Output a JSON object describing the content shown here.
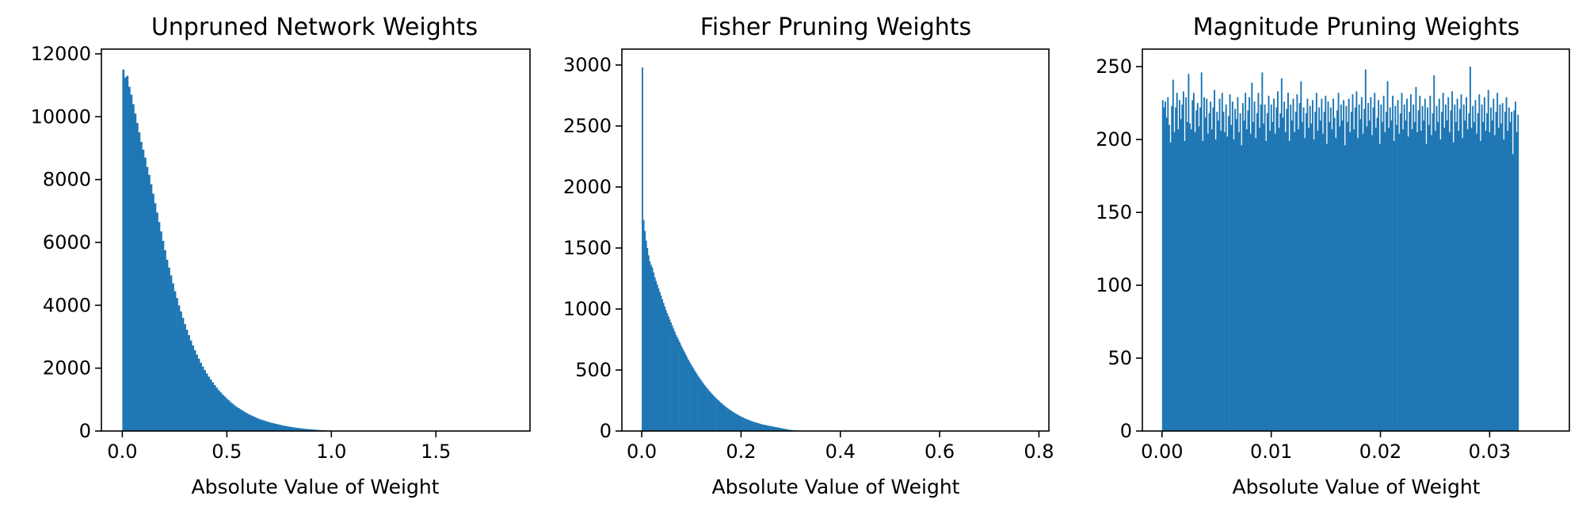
{
  "colors": {
    "bar": "#1f77b4",
    "axis": "#000000",
    "background": "#ffffff"
  },
  "chart_data": [
    {
      "type": "bar",
      "title": "Unpruned Network Weights",
      "xlabel": "Absolute Value of Weight",
      "ylabel": "",
      "xlim": [
        -0.1,
        1.95
      ],
      "ylim": [
        0,
        12150
      ],
      "xticks": [
        0.0,
        0.5,
        1.0,
        1.5
      ],
      "xtick_labels": [
        "0.0",
        "0.5",
        "1.0",
        "1.5"
      ],
      "yticks": [
        0,
        2000,
        4000,
        6000,
        8000,
        10000,
        12000
      ],
      "ytick_labels": [
        "0",
        "2000",
        "4000",
        "6000",
        "8000",
        "10000",
        "12000"
      ],
      "bins": {
        "start": 0.0,
        "width": 0.0095
      },
      "values": [
        11500,
        11250,
        11300,
        10950,
        10700,
        10400,
        10100,
        9800,
        9500,
        9200,
        8950,
        8700,
        8400,
        8150,
        7850,
        7550,
        7250,
        6950,
        6650,
        6350,
        6050,
        5750,
        5450,
        5200,
        4950,
        4700,
        4450,
        4230,
        4000,
        3800,
        3600,
        3400,
        3220,
        3050,
        2880,
        2720,
        2570,
        2430,
        2300,
        2170,
        2050,
        1940,
        1830,
        1730,
        1640,
        1550,
        1460,
        1380,
        1300,
        1230,
        1160,
        1100,
        1040,
        980,
        920,
        870,
        820,
        770,
        730,
        690,
        650,
        610,
        575,
        540,
        510,
        480,
        450,
        420,
        395,
        370,
        350,
        330,
        310,
        290,
        270,
        255,
        240,
        225,
        210,
        195,
        180,
        168,
        156,
        145,
        134,
        124,
        115,
        106,
        98,
        90,
        82,
        75,
        68,
        62,
        56,
        50,
        45,
        40,
        35,
        30,
        26,
        22,
        19,
        16,
        13,
        11,
        9,
        7,
        5,
        4,
        3,
        2,
        2,
        1,
        1
      ]
    },
    {
      "type": "bar",
      "title": "Fisher Pruning Weights",
      "xlabel": "Absolute Value of Weight",
      "ylabel": "",
      "xlim": [
        -0.04,
        0.82
      ],
      "ylim": [
        0,
        3130
      ],
      "xticks": [
        0.0,
        0.2,
        0.4,
        0.6,
        0.8
      ],
      "xtick_labels": [
        "0.0",
        "0.2",
        "0.4",
        "0.6",
        "0.8"
      ],
      "yticks": [
        0,
        500,
        1000,
        1500,
        2000,
        2500,
        3000
      ],
      "ytick_labels": [
        "0",
        "500",
        "1000",
        "1500",
        "2000",
        "2500",
        "3000"
      ],
      "bins": {
        "start": 0.0,
        "width": 0.0025
      },
      "values": [
        2980,
        1730,
        1640,
        1560,
        1500,
        1440,
        1390,
        1360,
        1340,
        1300,
        1260,
        1230,
        1200,
        1170,
        1140,
        1110,
        1080,
        1050,
        1020,
        990,
        965,
        940,
        915,
        890,
        865,
        840,
        815,
        790,
        770,
        750,
        728,
        706,
        685,
        665,
        645,
        625,
        605,
        585,
        567,
        549,
        532,
        515,
        498,
        482,
        466,
        450,
        435,
        420,
        406,
        392,
        378,
        365,
        352,
        340,
        328,
        316,
        305,
        294,
        283,
        273,
        263,
        253,
        243,
        234,
        225,
        216,
        208,
        200,
        192,
        184,
        177,
        170,
        163,
        156,
        150,
        144,
        138,
        132,
        126,
        121,
        116,
        111,
        106,
        101,
        97,
        93,
        89,
        85,
        81,
        77,
        74,
        71,
        68,
        65,
        62,
        59,
        56,
        53,
        51,
        49,
        47,
        45,
        43,
        41,
        39,
        37,
        35,
        33,
        31,
        29,
        27,
        25,
        23,
        21,
        19,
        17,
        15,
        13,
        11,
        10,
        9,
        8,
        7,
        6,
        5,
        4,
        3,
        3,
        2,
        2,
        2,
        1,
        1,
        1,
        1,
        1,
        1,
        1,
        1,
        1
      ]
    },
    {
      "type": "bar",
      "title": "Magnitude Pruning Weights",
      "xlabel": "Absolute Value of Weight",
      "ylabel": "",
      "xlim": [
        -0.0018,
        0.0373
      ],
      "ylim": [
        0,
        262
      ],
      "xticks": [
        0.0,
        0.01,
        0.02,
        0.03
      ],
      "xtick_labels": [
        "0.00",
        "0.01",
        "0.02",
        "0.03"
      ],
      "yticks": [
        0,
        50,
        100,
        150,
        200,
        250
      ],
      "ytick_labels": [
        "0",
        "50",
        "100",
        "150",
        "200",
        "250"
      ],
      "bins": {
        "start": 0.0,
        "width": 0.0001183
      },
      "values": [
        227,
        222,
        226,
        215,
        229,
        210,
        198,
        223,
        241,
        205,
        222,
        232,
        207,
        227,
        214,
        224,
        233,
        199,
        229,
        212,
        245,
        211,
        207,
        227,
        232,
        205,
        220,
        225,
        209,
        222,
        246,
        199,
        229,
        215,
        228,
        204,
        218,
        226,
        207,
        222,
        234,
        200,
        219,
        213,
        228,
        206,
        232,
        219,
        205,
        224,
        202,
        216,
        231,
        210,
        226,
        200,
        221,
        214,
        229,
        205,
        218,
        196,
        225,
        213,
        232,
        207,
        220,
        229,
        204,
        239,
        212,
        226,
        201,
        218,
        232,
        208,
        224,
        246,
        211,
        224,
        199,
        218,
        230,
        206,
        224,
        212,
        228,
        204,
        222,
        233,
        208,
        218,
        242,
        215,
        226,
        205,
        221,
        232,
        199,
        224,
        213,
        228,
        205,
        219,
        231,
        207,
        225,
        240,
        212,
        222,
        201,
        218,
        228,
        208,
        223,
        211,
        227,
        200,
        219,
        232,
        206,
        222,
        213,
        228,
        204,
        219,
        230,
        197,
        226,
        212,
        222,
        207,
        228,
        215,
        201,
        220,
        232,
        209,
        224,
        213,
        227,
        196,
        223,
        212,
        228,
        205,
        219,
        231,
        207,
        222,
        233,
        201,
        224,
        214,
        229,
        204,
        221,
        248,
        209,
        225,
        213,
        229,
        203,
        222,
        232,
        208,
        215,
        227,
        197,
        224,
        212,
        230,
        205,
        219,
        240,
        208,
        222,
        213,
        230,
        199,
        223,
        210,
        227,
        204,
        218,
        232,
        207,
        224,
        213,
        228,
        202,
        219,
        231,
        207,
        224,
        212,
        236,
        205,
        220,
        230,
        206,
        223,
        213,
        228,
        197,
        222,
        210,
        230,
        203,
        218,
        244,
        206,
        223,
        212,
        228,
        200,
        219,
        232,
        208,
        224,
        213,
        229,
        205,
        220,
        233,
        198,
        224,
        212,
        228,
        206,
        221,
        231,
        201,
        224,
        213,
        229,
        207,
        218,
        250,
        208,
        223,
        212,
        227,
        204,
        218,
        231,
        199,
        224,
        212,
        229,
        206,
        218,
        234,
        205,
        222,
        213,
        228,
        203,
        219,
        232,
        208,
        224,
        211,
        225,
        200,
        219,
        229,
        206,
        222,
        212,
        219,
        190,
        220,
        226,
        205,
        217
      ]
    }
  ]
}
